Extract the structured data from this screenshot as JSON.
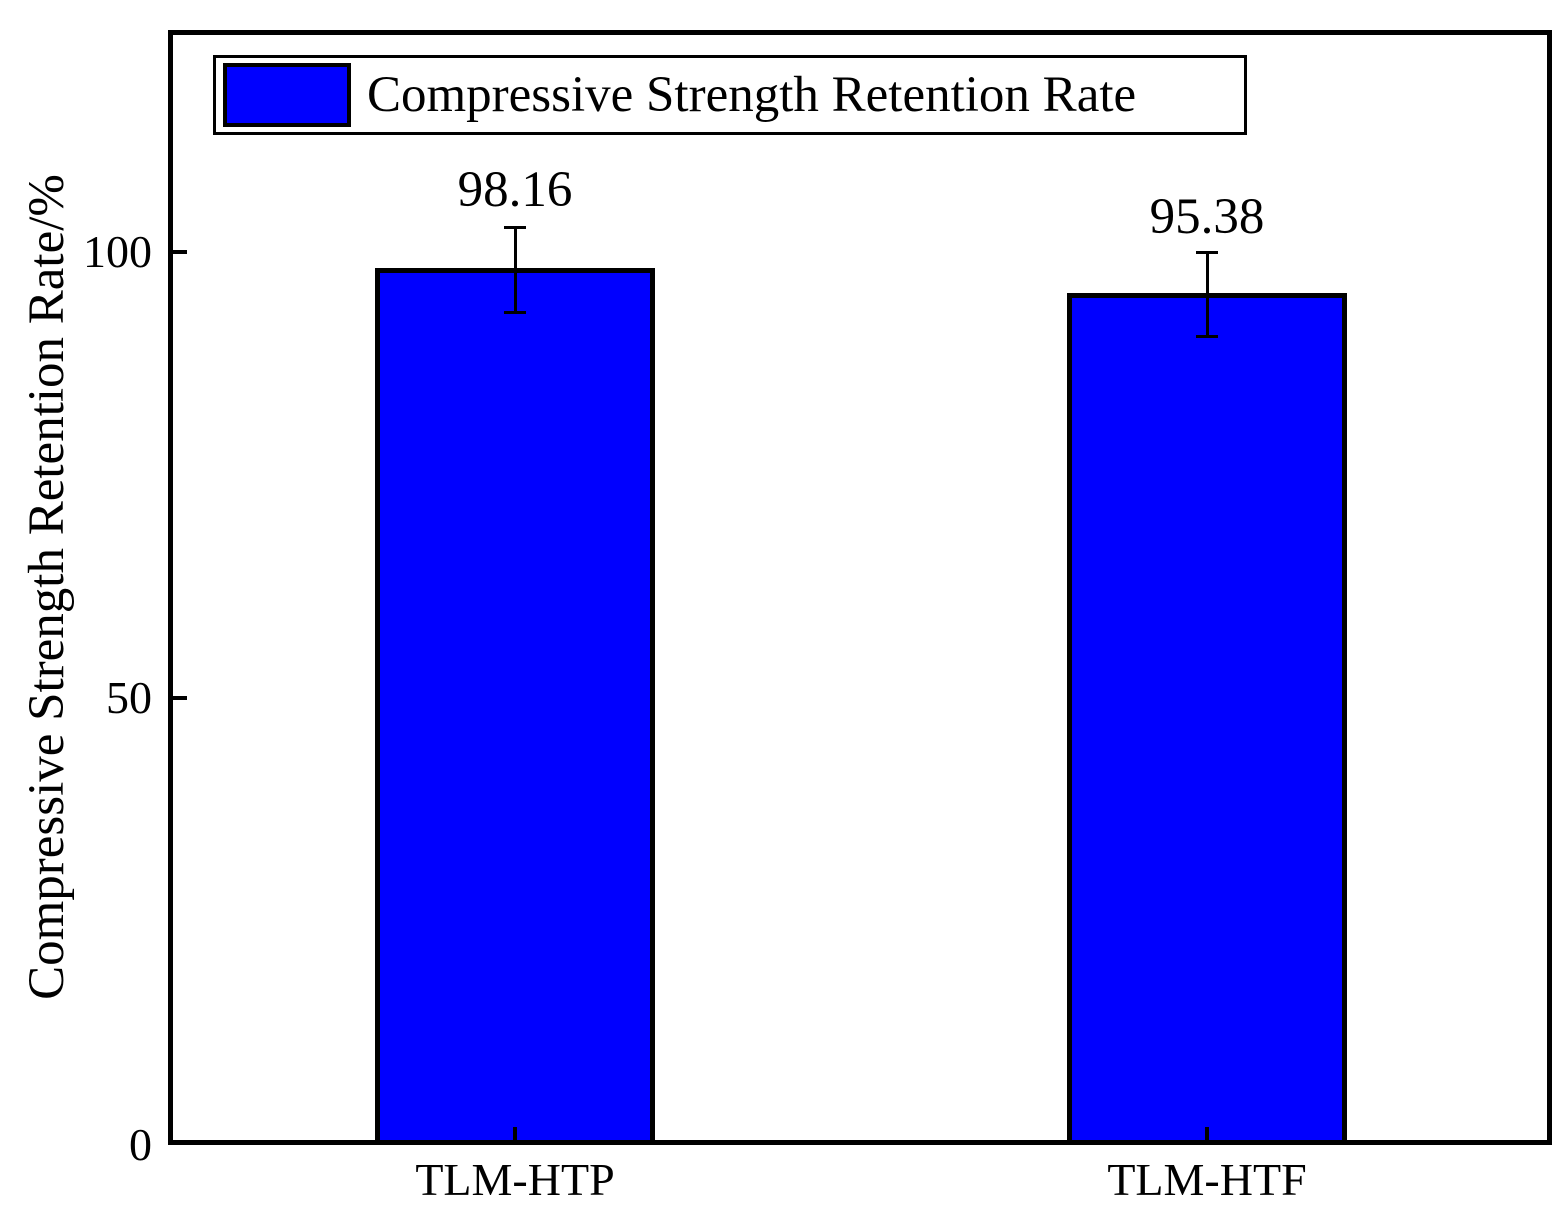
{
  "chart_data": {
    "type": "bar",
    "title": "",
    "categories": [
      "TLM-HTP",
      "TLM-HTF"
    ],
    "values": [
      98.16,
      95.38
    ],
    "errors": [
      4.7,
      4.7
    ],
    "xlabel": "",
    "ylabel": "Compressive Strength Retention Rate/%",
    "ylim": [
      0,
      125
    ],
    "yticks": [
      0,
      50,
      100
    ],
    "grid": false,
    "legend_position": "upper left",
    "legend_entries": [
      "Compressive Strength Retention Rate"
    ],
    "bar_fill_color": "#0000ff",
    "bar_edge_color": "#000000",
    "error_bar_color": "#000000"
  },
  "axes": {
    "y_title": "Compressive Strength Retention Rate/%",
    "ytick_labels": [
      "100",
      "50",
      "0"
    ],
    "xtick_labels": [
      "TLM-HTP",
      "TLM-HTF"
    ]
  },
  "legend": {
    "label": "Compressive Strength Retention Rate"
  },
  "bars": [
    {
      "category": "TLM-HTP",
      "value_label": "98.16"
    },
    {
      "category": "TLM-HTF",
      "value_label": "95.38"
    }
  ]
}
